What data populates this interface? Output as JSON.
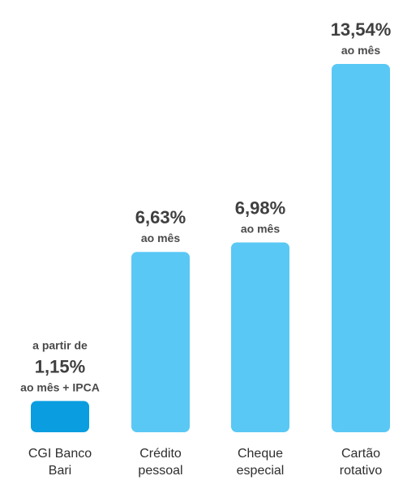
{
  "chart_data": {
    "type": "bar",
    "categories": [
      "CGI Banco Bari",
      "Crédito pessoal",
      "Cheque especial",
      "Cartão rotativo"
    ],
    "category_lines": [
      [
        "CGI Banco",
        "Bari"
      ],
      [
        "Crédito",
        "pessoal"
      ],
      [
        "Cheque",
        "especial"
      ],
      [
        "Cartão",
        "rotativo"
      ]
    ],
    "values": [
      1.15,
      6.63,
      6.98,
      13.54
    ],
    "value_labels": [
      {
        "prefix": "a partir de",
        "value": "1,15%",
        "suffix": "ao mês + IPCA"
      },
      {
        "prefix": "",
        "value": "6,63%",
        "suffix": "ao mês"
      },
      {
        "prefix": "",
        "value": "6,98%",
        "suffix": "ao mês"
      },
      {
        "prefix": "",
        "value": "13,54%",
        "suffix": "ao mês"
      }
    ],
    "colors": [
      "#0a9ddf",
      "#5ac8f5",
      "#5ac8f5",
      "#5ac8f5"
    ],
    "title": "",
    "xlabel": "",
    "ylabel": "",
    "ylim": [
      0,
      13.54
    ],
    "grid": false,
    "legend": "none"
  }
}
